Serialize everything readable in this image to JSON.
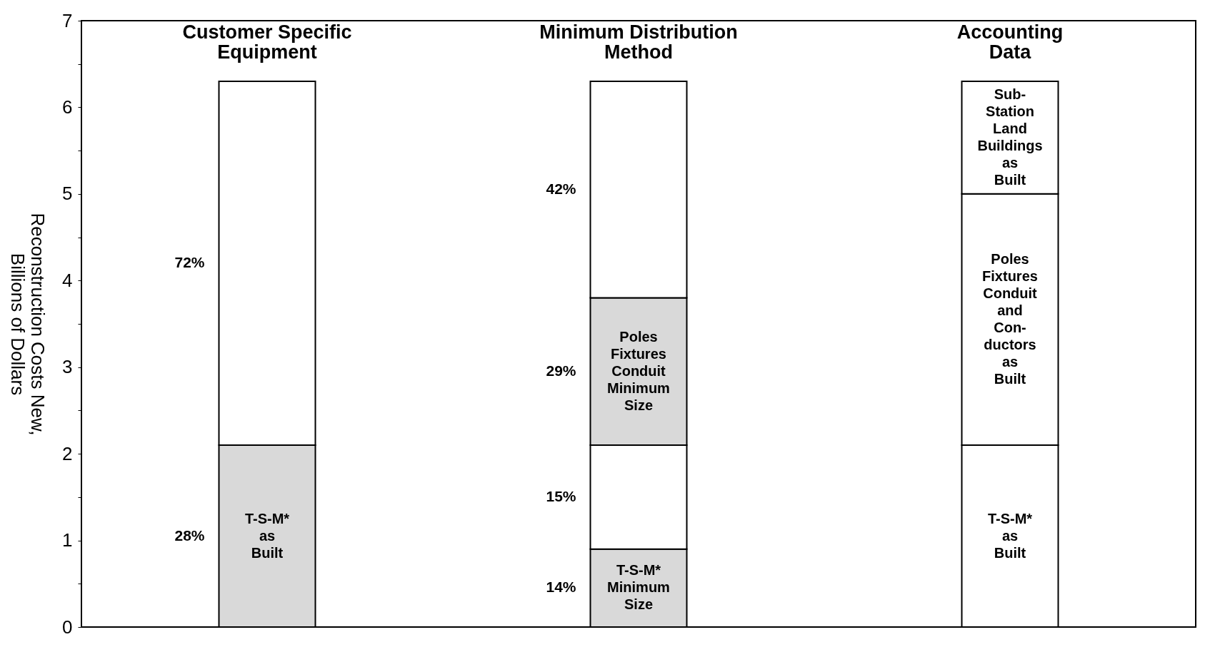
{
  "chart_data": {
    "type": "bar",
    "stacked": true,
    "categories": [
      "Customer Specific Equipment",
      "Minimum Distribution Method",
      "Accounting Data"
    ],
    "ylabel": "Reconstruction Costs New, Billions of Dollars",
    "ylim": [
      0,
      7
    ],
    "yticks": [
      0,
      {
        "value": 0.5,
        "label": null
      },
      1,
      {
        "value": 1.5,
        "label": null
      },
      2,
      {
        "value": 2.5,
        "label": null
      },
      3,
      {
        "value": 3.5,
        "label": null
      },
      4,
      {
        "value": 4.5,
        "label": null
      },
      5,
      {
        "value": 5.5,
        "label": null
      },
      6,
      {
        "value": 6.5,
        "label": null
      },
      7
    ],
    "series": [
      {
        "values": [
          2.1,
          0.9,
          2.1
        ],
        "colors": [
          "#d9d9d9",
          "#d9d9d9",
          "#ffffff"
        ],
        "value_labels": [
          "T-S-M* as Built",
          "T-S-M* Minimum Size",
          "T-S-M* as Built"
        ]
      },
      {
        "values": [
          4.2,
          1.2,
          2.9
        ],
        "colors": [
          "#ffffff",
          "#ffffff",
          "#ffffff"
        ],
        "value_labels": [
          null,
          null,
          "Poles Fixtures Conduit and Con- ductors as Built"
        ]
      },
      {
        "values": [
          null,
          1.7,
          1.3
        ],
        "colors": [
          "#ffffff",
          "#d9d9d9",
          "#ffffff"
        ],
        "value_labels": [
          null,
          "Poles Fixtures Conduit Minimum Size",
          "Sub- Station Land Buildings as Built"
        ]
      },
      {
        "values": [
          null,
          2.5,
          null
        ],
        "colors": [
          "#ffffff",
          "#ffffff",
          "#ffffff"
        ]
      }
    ],
    "annotations": [
      "28%",
      "72%",
      "14%",
      "15%",
      "29%",
      "42%"
    ]
  }
}
